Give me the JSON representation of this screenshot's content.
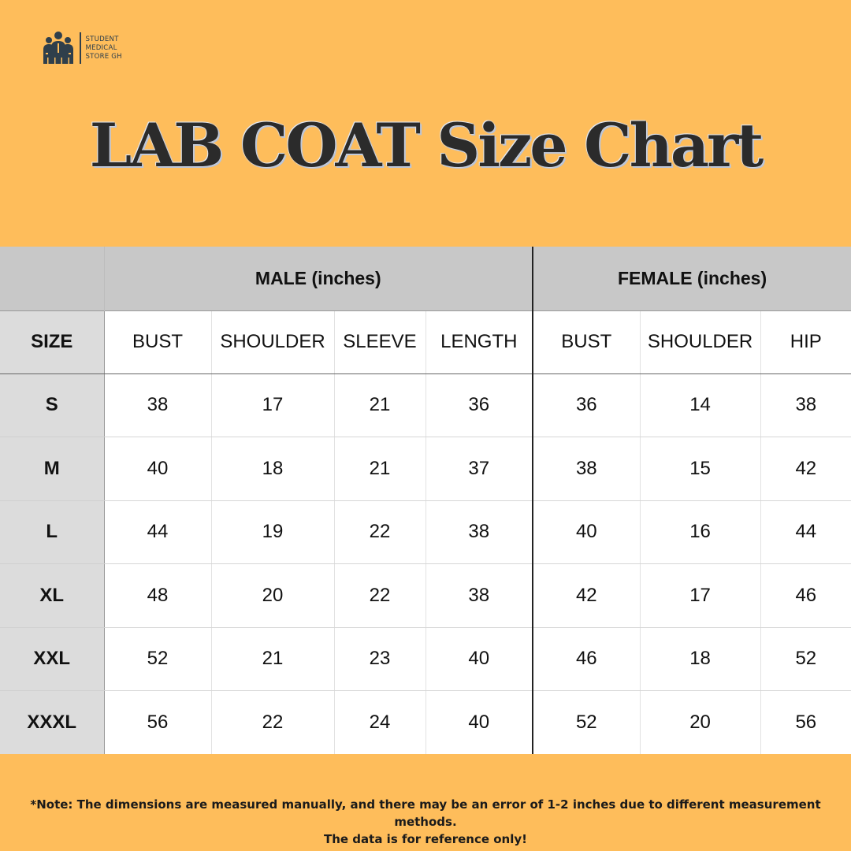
{
  "brand": {
    "line1": "STUDENT",
    "line2": "MEDICAL",
    "line3": "STORE GH",
    "icon": "three-doctors-icon",
    "color": "#2f3f4b"
  },
  "title": "LAB COAT Size Chart",
  "colors": {
    "background": "#FEBD5B",
    "group_header": "#C8C8C8",
    "size_column": "#DCDCDC"
  },
  "table": {
    "groups": {
      "male": "MALE (inches)",
      "female": "FEMALE (inches)"
    },
    "headers": [
      "SIZE",
      "BUST",
      "SHOULDER",
      "SLEEVE",
      "LENGTH",
      "BUST",
      "SHOULDER",
      "HIP"
    ],
    "rows": [
      [
        "S",
        "38",
        "17",
        "21",
        "36",
        "36",
        "14",
        "38"
      ],
      [
        "M",
        "40",
        "18",
        "21",
        "37",
        "38",
        "15",
        "42"
      ],
      [
        "L",
        "44",
        "19",
        "22",
        "38",
        "40",
        "16",
        "44"
      ],
      [
        "XL",
        "48",
        "20",
        "22",
        "38",
        "42",
        "17",
        "46"
      ],
      [
        "XXL",
        "52",
        "21",
        "23",
        "40",
        "46",
        "18",
        "52"
      ],
      [
        "XXXL",
        "56",
        "22",
        "24",
        "40",
        "52",
        "20",
        "56"
      ]
    ]
  },
  "note": {
    "line1": "*Note: The dimensions are measured manually, and there may be an error of 1-2 inches due to different measurement methods.",
    "line2": "The data is for reference only!"
  }
}
